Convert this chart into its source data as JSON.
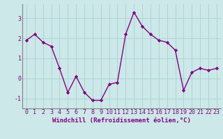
{
  "x": [
    0,
    1,
    2,
    3,
    4,
    5,
    6,
    7,
    8,
    9,
    10,
    11,
    12,
    13,
    14,
    15,
    16,
    17,
    18,
    19,
    20,
    21,
    22,
    23
  ],
  "y": [
    1.9,
    2.2,
    1.8,
    1.6,
    0.5,
    -0.7,
    0.1,
    -0.7,
    -1.1,
    -1.1,
    -0.3,
    -0.2,
    2.2,
    3.3,
    2.6,
    2.2,
    1.9,
    1.8,
    1.4,
    -0.6,
    0.3,
    0.5,
    0.4,
    0.5
  ],
  "line_color": "#800080",
  "marker": "D",
  "marker_size": 2.2,
  "xlabel": "Windchill (Refroidissement éolien,°C)",
  "xlabel_fontsize": 6.5,
  "xtick_labels": [
    "0",
    "1",
    "2",
    "3",
    "4",
    "5",
    "6",
    "7",
    "8",
    "9",
    "10",
    "11",
    "12",
    "13",
    "14",
    "15",
    "16",
    "17",
    "18",
    "19",
    "20",
    "21",
    "22",
    "23"
  ],
  "ytick_labels": [
    "-1",
    "0",
    "1",
    "2",
    "3"
  ],
  "yticks": [
    -1,
    0,
    1,
    2,
    3
  ],
  "ylim": [
    -1.5,
    3.7
  ],
  "xlim": [
    -0.5,
    23.5
  ],
  "grid_color": "#aed4d4",
  "bg_color": "#cce8e8",
  "tick_color": "#800080",
  "tick_fontsize": 6,
  "line_width": 1.0,
  "spine_color": "#808080"
}
